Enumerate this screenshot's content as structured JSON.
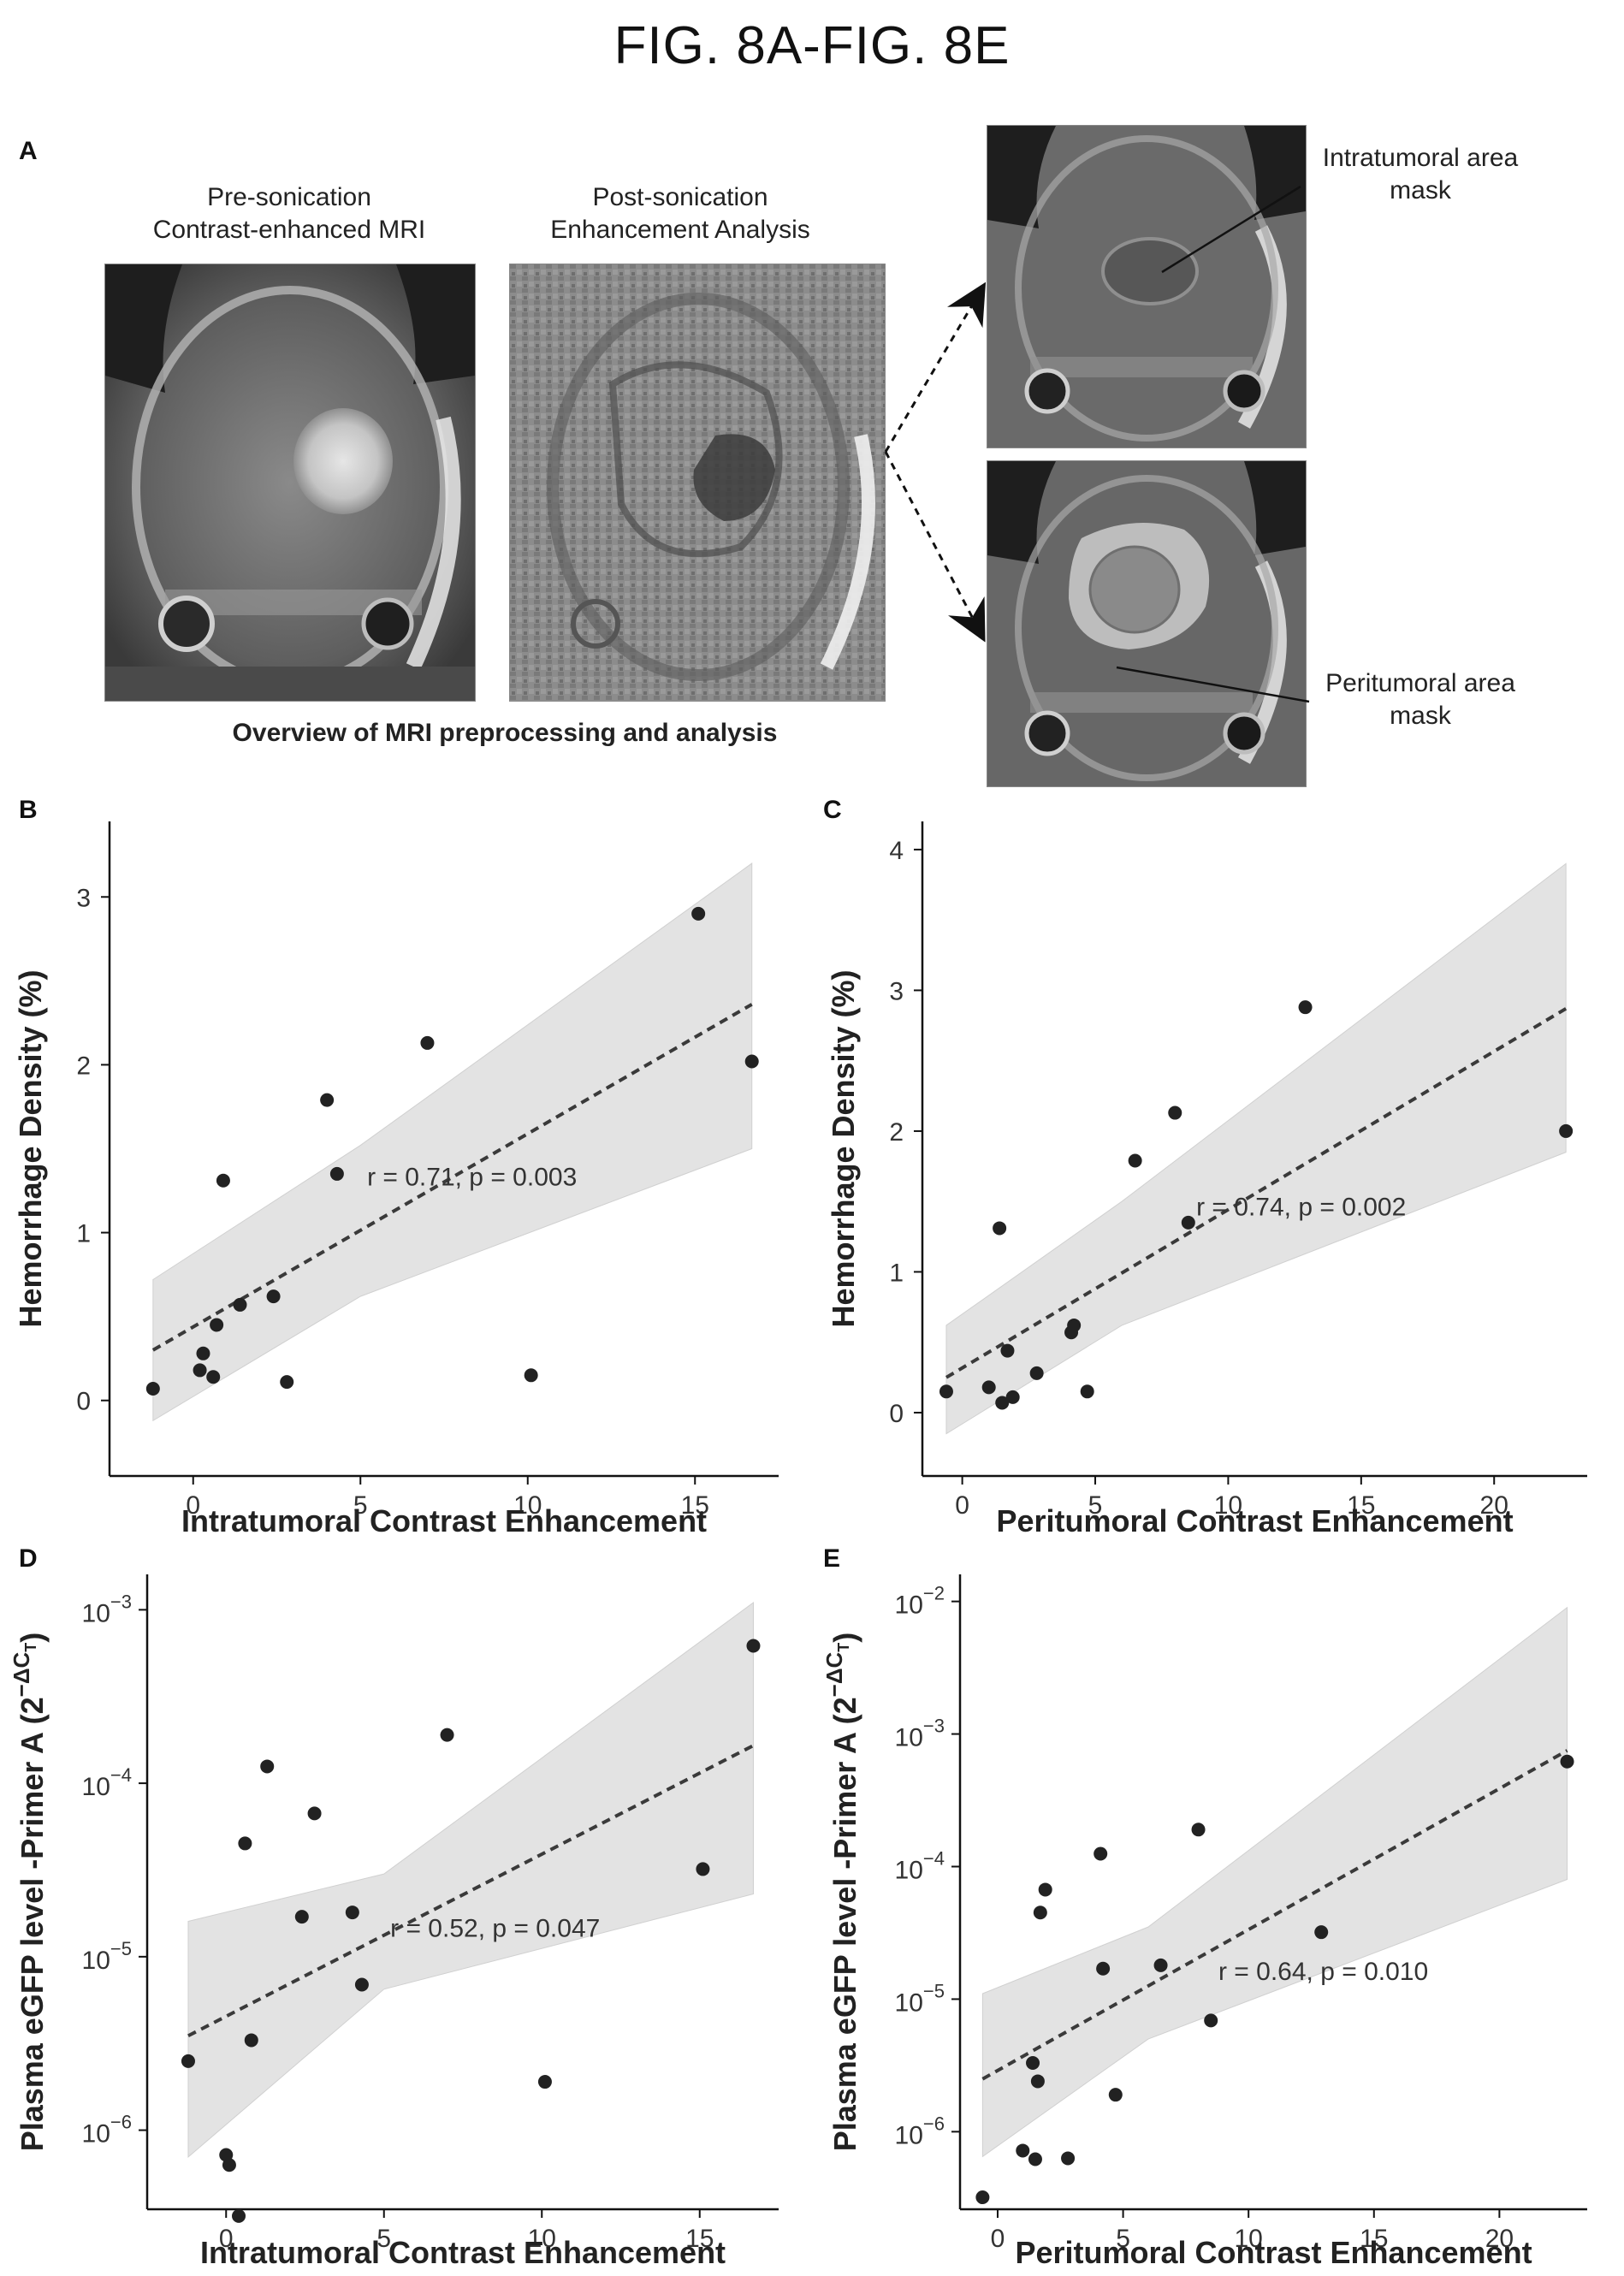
{
  "figure_title": "FIG. 8A-FIG. 8E",
  "panel_a": {
    "letter": "A",
    "pre_caption_line1": "Pre-sonication",
    "pre_caption_line2": "Contrast-enhanced MRI",
    "post_caption_line1": "Post-sonication",
    "post_caption_line2": "Enhancement Analysis",
    "overview_caption": "Overview of MRI preprocessing and analysis",
    "intratumoral_label_line1": "Intratumoral area",
    "intratumoral_label_line2": "mask",
    "peritumoral_label_line1": "Peritumoral area",
    "peritumoral_label_line2": "mask"
  },
  "chart_data": [
    {
      "id": "B",
      "type": "scatter",
      "letter": "B",
      "xlabel": "Intratumoral Contrast Enhancement",
      "ylabel": "Hemorrhage Density (%)",
      "xlim": [
        -2.5,
        17.5
      ],
      "ylim": [
        -0.45,
        3.45
      ],
      "xticks": [
        0,
        5,
        10,
        15
      ],
      "yticks": [
        0,
        1,
        2,
        3
      ],
      "ylog": false,
      "annotation": "r = 0.71, p = 0.003",
      "points": [
        [
          -1.2,
          0.07
        ],
        [
          0.2,
          0.18
        ],
        [
          0.3,
          0.28
        ],
        [
          0.6,
          0.14
        ],
        [
          0.7,
          0.45
        ],
        [
          0.9,
          1.31
        ],
        [
          1.4,
          0.57
        ],
        [
          2.4,
          0.62
        ],
        [
          2.8,
          0.11
        ],
        [
          4.0,
          1.79
        ],
        [
          4.3,
          1.35
        ],
        [
          7.0,
          2.13
        ],
        [
          10.1,
          0.15
        ],
        [
          15.1,
          2.9
        ],
        [
          16.7,
          2.02
        ]
      ],
      "fit": {
        "x0": -1.2,
        "y0": 0.3,
        "x1": 16.7,
        "y1": 2.36
      },
      "band": {
        "upper": [
          [
            -1.2,
            0.72
          ],
          [
            5,
            1.52
          ],
          [
            16.7,
            3.2
          ]
        ],
        "lower": [
          [
            -1.2,
            -0.12
          ],
          [
            5,
            0.62
          ],
          [
            16.7,
            1.5
          ]
        ]
      }
    },
    {
      "id": "C",
      "type": "scatter",
      "letter": "C",
      "xlabel": "Peritumoral Contrast Enhancement",
      "ylabel": "Hemorrhage Density (%)",
      "xlim": [
        -1.5,
        23.5
      ],
      "ylim": [
        -0.45,
        4.2
      ],
      "xticks": [
        0,
        5,
        10,
        15,
        20
      ],
      "yticks": [
        0,
        1,
        2,
        3,
        4
      ],
      "ylog": false,
      "annotation": "r = 0.74, p = 0.002",
      "points": [
        [
          -0.6,
          0.15
        ],
        [
          1.0,
          0.18
        ],
        [
          1.4,
          1.31
        ],
        [
          1.5,
          0.07
        ],
        [
          1.7,
          0.44
        ],
        [
          1.9,
          0.11
        ],
        [
          2.8,
          0.28
        ],
        [
          4.1,
          0.57
        ],
        [
          4.2,
          0.62
        ],
        [
          4.7,
          0.15
        ],
        [
          6.5,
          1.79
        ],
        [
          8.0,
          2.13
        ],
        [
          8.5,
          1.35
        ],
        [
          12.9,
          2.88
        ],
        [
          22.7,
          2.0
        ]
      ],
      "fit": {
        "x0": -0.6,
        "y0": 0.25,
        "x1": 22.7,
        "y1": 2.87
      },
      "band": {
        "upper": [
          [
            -0.6,
            0.62
          ],
          [
            6,
            1.5
          ],
          [
            22.7,
            3.9
          ]
        ],
        "lower": [
          [
            -0.6,
            -0.15
          ],
          [
            6,
            0.62
          ],
          [
            22.7,
            1.85
          ]
        ]
      }
    },
    {
      "id": "D",
      "type": "scatter",
      "letter": "D",
      "xlabel": "Intratumoral Contrast Enhancement",
      "ylabel": "Plasma eGFP level -Primer A (2",
      "xlim": [
        -2.5,
        17.5
      ],
      "ylim": [
        3.5e-07,
        0.0016
      ],
      "xticks": [
        0,
        5,
        10,
        15
      ],
      "yticks": [
        -6,
        -5,
        -4,
        -3
      ],
      "ylog": true,
      "annotation": "r = 0.52, p = 0.047",
      "points": [
        [
          -1.2,
          2.5e-06
        ],
        [
          0.0,
          7.2e-07
        ],
        [
          0.1,
          6.3e-07
        ],
        [
          0.4,
          3.2e-07
        ],
        [
          0.6,
          4.5e-05
        ],
        [
          0.8,
          3.3e-06
        ],
        [
          1.3,
          0.000125
        ],
        [
          2.4,
          1.7e-05
        ],
        [
          2.8,
          6.7e-05
        ],
        [
          4.0,
          1.8e-05
        ],
        [
          4.3,
          6.9e-06
        ],
        [
          7.0,
          0.00019
        ],
        [
          10.1,
          1.9e-06
        ],
        [
          15.1,
          3.2e-05
        ],
        [
          16.7,
          0.00062
        ]
      ],
      "fit": {
        "x0": -1.2,
        "y0": 3.5e-06,
        "x1": 16.7,
        "y1": 0.000165
      },
      "band": {
        "upper": [
          [
            -1.2,
            1.6e-05
          ],
          [
            5,
            3e-05
          ],
          [
            16.7,
            0.0011
          ]
        ],
        "lower": [
          [
            -1.2,
            7e-07
          ],
          [
            5,
            6.5e-06
          ],
          [
            16.7,
            2.3e-05
          ]
        ]
      }
    },
    {
      "id": "E",
      "type": "scatter",
      "letter": "E",
      "xlabel": "Peritumoral Contrast Enhancement",
      "ylabel": "Plasma eGFP level -Primer A (2",
      "xlim": [
        -1.5,
        23.5
      ],
      "ylim": [
        2.6e-07,
        0.016
      ],
      "xticks": [
        0,
        5,
        10,
        15,
        20
      ],
      "yticks": [
        -6,
        -5,
        -4,
        -3,
        -2
      ],
      "ylog": true,
      "annotation": "r = 0.64, p = 0.010",
      "points": [
        [
          -0.6,
          3.2e-07
        ],
        [
          1.0,
          7.2e-07
        ],
        [
          1.4,
          3.3e-06
        ],
        [
          1.5,
          6.2e-07
        ],
        [
          1.6,
          2.4e-06
        ],
        [
          1.7,
          4.5e-05
        ],
        [
          1.9,
          6.7e-05
        ],
        [
          2.8,
          6.3e-07
        ],
        [
          4.1,
          0.000125
        ],
        [
          4.2,
          1.7e-05
        ],
        [
          4.7,
          1.9e-06
        ],
        [
          6.5,
          1.8e-05
        ],
        [
          8.0,
          0.00019
        ],
        [
          8.5,
          6.9e-06
        ],
        [
          12.9,
          3.2e-05
        ],
        [
          22.7,
          0.00062
        ]
      ],
      "fit": {
        "x0": -0.6,
        "y0": 2.5e-06,
        "x1": 22.7,
        "y1": 0.00075
      },
      "band": {
        "upper": [
          [
            -0.6,
            1.1e-05
          ],
          [
            6,
            3.5e-05
          ],
          [
            22.7,
            0.009
          ]
        ],
        "lower": [
          [
            -0.6,
            6.5e-07
          ],
          [
            6,
            5e-06
          ],
          [
            22.7,
            8e-05
          ]
        ]
      }
    }
  ]
}
